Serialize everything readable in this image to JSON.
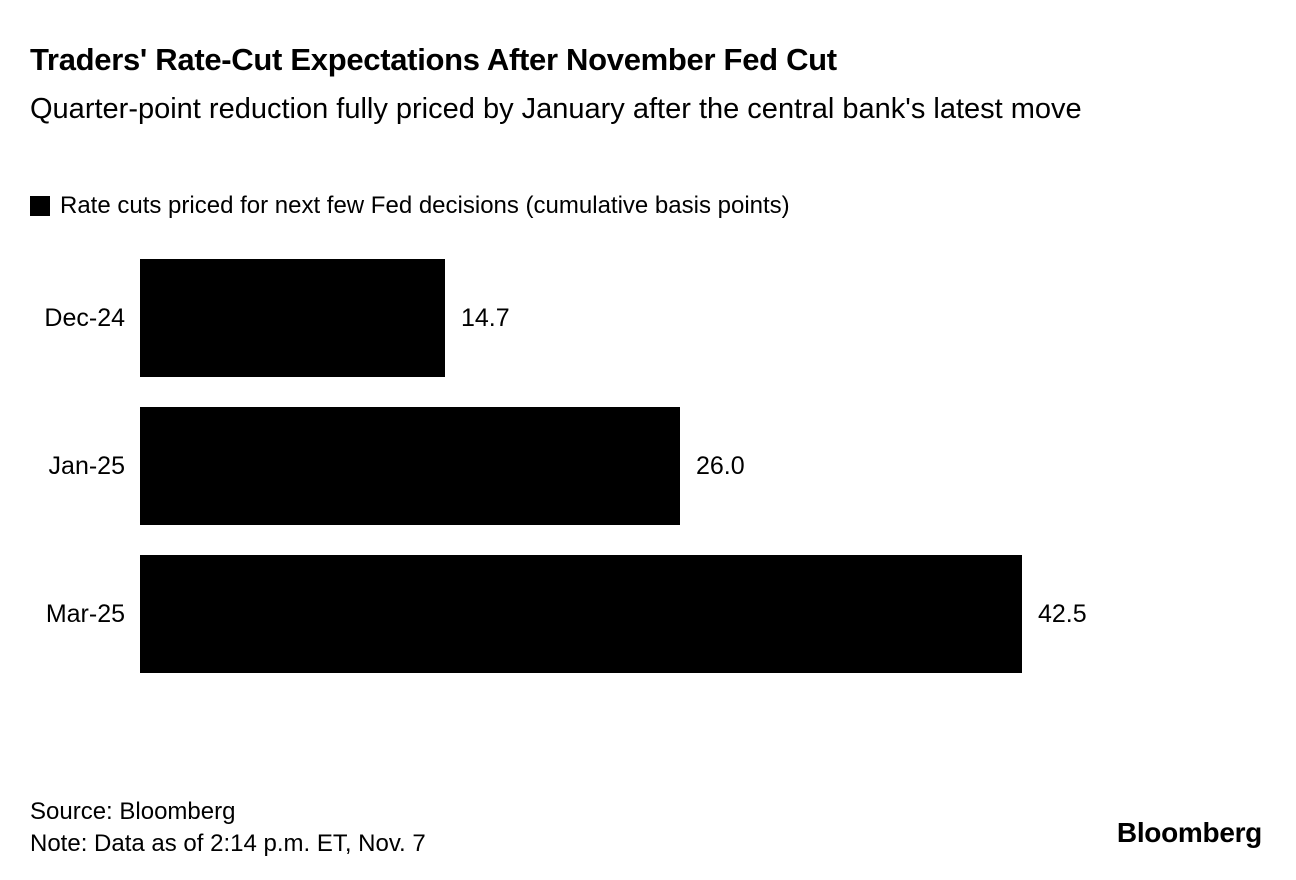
{
  "header": {
    "title": "Traders' Rate-Cut Expectations After November Fed Cut",
    "subtitle": "Quarter-point reduction fully priced by January after the central bank's latest move"
  },
  "legend": {
    "label": "Rate cuts priced for next few Fed decisions (cumulative basis points)",
    "swatch_color": "#000000"
  },
  "chart_data": {
    "type": "bar",
    "orientation": "horizontal",
    "categories": [
      "Dec-24",
      "Jan-25",
      "Mar-25"
    ],
    "values": [
      14.7,
      26.0,
      42.5
    ],
    "value_labels": [
      "14.7",
      "26.0",
      "42.5"
    ],
    "series_label": "Rate cuts priced for next few Fed decisions (cumulative basis points)",
    "bar_color": "#000000",
    "xlim": [
      0,
      42.5
    ],
    "grid": false,
    "legend_position": "top-left",
    "value_label_position": "right-of-bar"
  },
  "footer": {
    "source": "Source: Bloomberg",
    "note": "Note: Data as of 2:14 p.m. ET, Nov. 7",
    "brand": "Bloomberg"
  },
  "colors": {
    "background": "#ffffff",
    "foreground": "#000000"
  }
}
